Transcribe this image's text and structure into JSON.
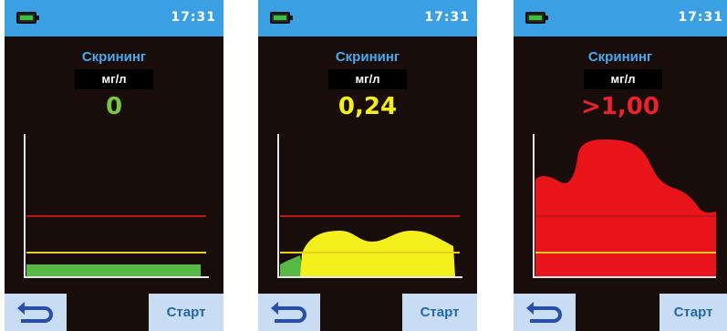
{
  "screens": [
    {
      "clock": "17:31",
      "title": "Скрининг",
      "unit": "мг/л",
      "value": "0",
      "value_color": "#79c640",
      "chart_fill": "#57b845",
      "back_icon": "back-arrow-icon",
      "start_label": "Старт"
    },
    {
      "clock": "17:31",
      "title": "Скрининг",
      "unit": "мг/л",
      "value": "0,24",
      "value_color": "#f3ef1f",
      "chart_fill": "#f4f01e",
      "back_icon": "back-arrow-icon",
      "start_label": "Старт"
    },
    {
      "clock": "17:31",
      "title": "Скрининг",
      "unit": "мг/л",
      "value": ">1,00",
      "value_color": "#e8232a",
      "chart_fill": "#e8141a",
      "back_icon": "back-arrow-icon",
      "start_label": "Старт"
    }
  ],
  "colors": {
    "threshold_high": "#c0141d",
    "threshold_low": "#e6d21c",
    "axis": "#e6e6e6",
    "status_bar": "#3aa0e3",
    "button_bg": "#c8ddf3"
  }
}
